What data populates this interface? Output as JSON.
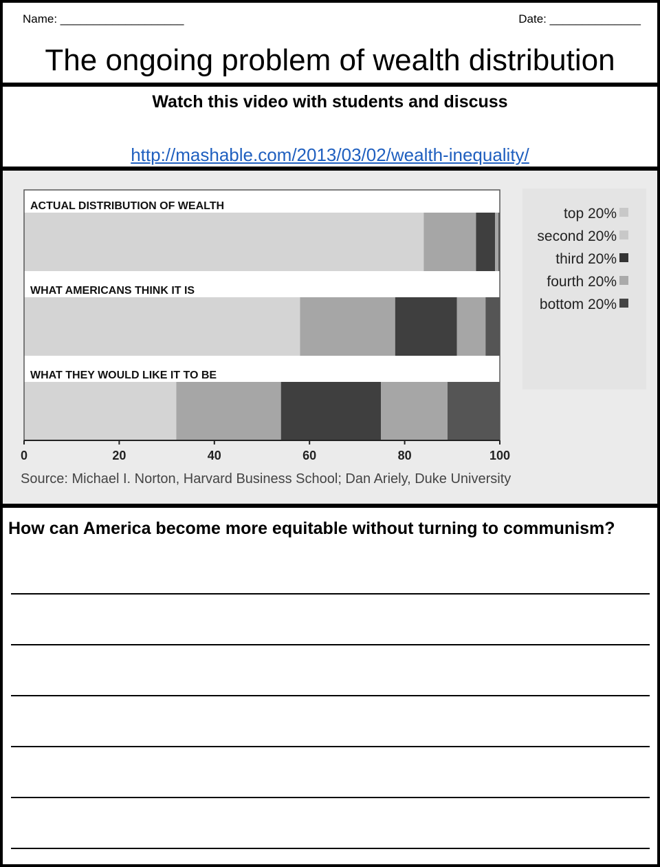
{
  "header": {
    "name_label": "Name: ___________________",
    "date_label": "Date: ______________",
    "title": "The ongoing problem of wealth distribution"
  },
  "video": {
    "instruction": "Watch this video with students and discuss",
    "url": "http://mashable.com/2013/03/02/wealth-inequality/"
  },
  "chart_data": {
    "type": "bar",
    "orientation": "horizontal-stacked",
    "rows": [
      {
        "label": "ACTUAL DISTRIBUTION OF WEALTH",
        "values": [
          84,
          11,
          4,
          0.7,
          0.3
        ]
      },
      {
        "label": "WHAT AMERICANS THINK IT IS",
        "values": [
          58,
          20,
          13,
          6,
          3
        ]
      },
      {
        "label": "WHAT THEY WOULD LIKE IT TO BE",
        "values": [
          32,
          22,
          21,
          14,
          11
        ]
      }
    ],
    "series": [
      {
        "name": "top 20%",
        "color": "#d4d4d4"
      },
      {
        "name": "second 20%",
        "color": "#a6a6a6"
      },
      {
        "name": "third 20%",
        "color": "#3f3f3f"
      },
      {
        "name": "fourth 20%",
        "color": "#a6a6a6"
      },
      {
        "name": "bottom 20%",
        "color": "#555555"
      }
    ],
    "legend_colors": [
      "#c8c8c8",
      "#c8c8c8",
      "#333333",
      "#aaaaaa",
      "#444444"
    ],
    "xlim": [
      0,
      100
    ],
    "xticks": [
      "0",
      "20",
      "40",
      "60",
      "80",
      "100"
    ],
    "legend_position": "right",
    "source": "Source: Michael I. Norton, Harvard Business School; Dan Ariely, Duke University"
  },
  "question": {
    "prompt": "How can America become more equitable without turning to communism?",
    "answer_lines": 6
  }
}
